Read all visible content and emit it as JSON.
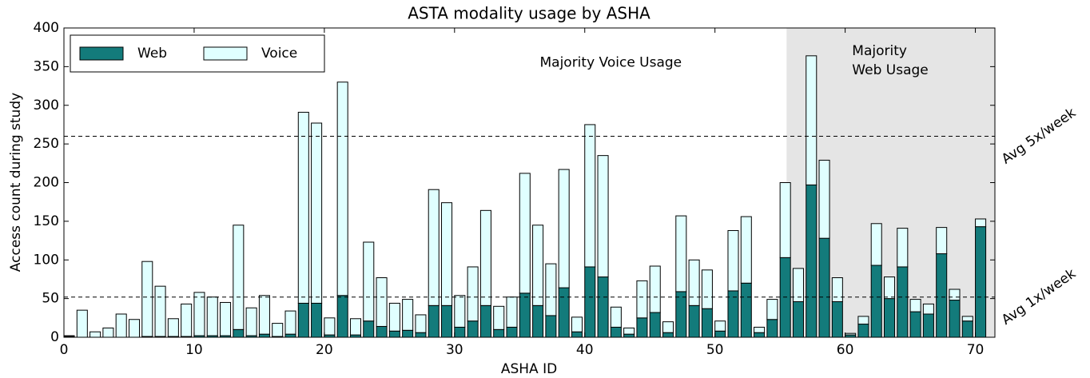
{
  "chart_data": {
    "type": "stacked_bar",
    "title": "ASTA modality usage by ASHA",
    "x_label": "ASHA ID",
    "y_label": "Access count during study",
    "x": [
      0,
      1,
      2,
      3,
      4,
      5,
      6,
      7,
      8,
      9,
      10,
      11,
      12,
      13,
      14,
      15,
      16,
      17,
      18,
      19,
      20,
      21,
      22,
      23,
      24,
      25,
      26,
      27,
      28,
      29,
      30,
      31,
      32,
      33,
      34,
      35,
      36,
      37,
      38,
      39,
      40,
      41,
      42,
      43,
      44,
      45,
      46,
      47,
      48,
      49,
      50,
      51,
      52,
      53,
      54,
      55,
      56,
      57,
      58,
      59,
      60,
      61,
      62,
      63,
      64,
      65,
      66,
      67,
      68,
      69,
      70
    ],
    "series": [
      {
        "name": "Web",
        "color": "#137b7b",
        "values": [
          1,
          0,
          0,
          0,
          0,
          0,
          1,
          1,
          1,
          1,
          2,
          2,
          2,
          10,
          2,
          4,
          1,
          4,
          44,
          44,
          3,
          54,
          3,
          21,
          14,
          8,
          9,
          6,
          41,
          41,
          13,
          21,
          41,
          10,
          13,
          57,
          41,
          28,
          64,
          7,
          91,
          78,
          13,
          4,
          25,
          32,
          6,
          59,
          41,
          37,
          8,
          60,
          70,
          6,
          23,
          103,
          46,
          197,
          128,
          46,
          3,
          17,
          93,
          50,
          91,
          33,
          30,
          108,
          48,
          21,
          143
        ]
      },
      {
        "name": "Voice",
        "color": "#e0ffff",
        "values": [
          1,
          35,
          7,
          12,
          30,
          23,
          97,
          65,
          23,
          42,
          56,
          50,
          43,
          135,
          36,
          50,
          17,
          30,
          247,
          233,
          22,
          276,
          21,
          102,
          63,
          36,
          40,
          23,
          150,
          133,
          41,
          70,
          123,
          30,
          39,
          155,
          104,
          67,
          153,
          19,
          184,
          157,
          26,
          8,
          48,
          60,
          14,
          98,
          59,
          50,
          13,
          78,
          86,
          7,
          26,
          97,
          43,
          167,
          101,
          31,
          2,
          10,
          54,
          28,
          50,
          16,
          13,
          34,
          14,
          6,
          10
        ]
      }
    ],
    "xlim": [
      0,
      71.5
    ],
    "ylim": [
      0,
      400
    ],
    "xticks": [
      0,
      10,
      20,
      30,
      40,
      50,
      60,
      70
    ],
    "yticks": [
      0,
      50,
      100,
      150,
      200,
      250,
      300,
      350,
      400
    ],
    "legend": "upper left",
    "reference_lines": [
      {
        "value": 260,
        "label": "Avg 5x/week"
      },
      {
        "value": 52,
        "label": "Avg 1x/week"
      }
    ],
    "regions": [
      {
        "xrange": [
          55.5,
          71.5
        ],
        "color": "#e5e5e5",
        "lines": [
          "Majority",
          "Web Usage"
        ]
      }
    ],
    "annotations": [
      {
        "text": "Majority Voice Usage",
        "x": 42,
        "y": 355
      }
    ]
  }
}
